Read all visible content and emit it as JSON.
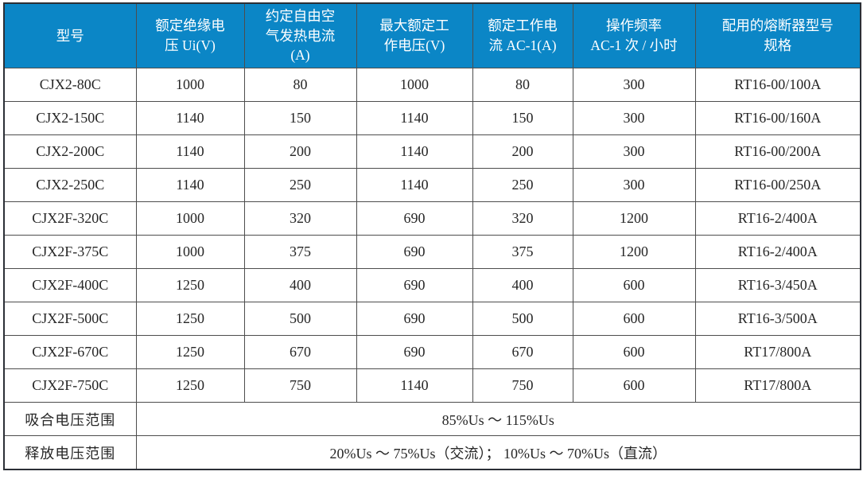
{
  "table": {
    "columns": [
      "型号",
      "额定绝缘电\n压 Ui(V)",
      "约定自由空\n气发热电流\n(A)",
      "最大额定工\n作电压(V)",
      "额定工作电\n流 AC-1(A)",
      "操作频率\nAC-1 次 / 小时",
      "配用的熔断器型号\n规格"
    ],
    "rows": [
      [
        "CJX2-80C",
        "1000",
        "80",
        "1000",
        "80",
        "300",
        "RT16-00/100A"
      ],
      [
        "CJX2-150C",
        "1140",
        "150",
        "1140",
        "150",
        "300",
        "RT16-00/160A"
      ],
      [
        "CJX2-200C",
        "1140",
        "200",
        "1140",
        "200",
        "300",
        "RT16-00/200A"
      ],
      [
        "CJX2-250C",
        "1140",
        "250",
        "1140",
        "250",
        "300",
        "RT16-00/250A"
      ],
      [
        "CJX2F-320C",
        "1000",
        "320",
        "690",
        "320",
        "1200",
        "RT16-2/400A"
      ],
      [
        "CJX2F-375C",
        "1000",
        "375",
        "690",
        "375",
        "1200",
        "RT16-2/400A"
      ],
      [
        "CJX2F-400C",
        "1250",
        "400",
        "690",
        "400",
        "600",
        "RT16-3/450A"
      ],
      [
        "CJX2F-500C",
        "1250",
        "500",
        "690",
        "500",
        "600",
        "RT16-3/500A"
      ],
      [
        "CJX2F-670C",
        "1250",
        "670",
        "690",
        "670",
        "600",
        "RT17/800A"
      ],
      [
        "CJX2F-750C",
        "1250",
        "750",
        "1140",
        "750",
        "600",
        "RT17/800A"
      ]
    ],
    "footer": [
      {
        "label": "吸合电压范围",
        "value": "85%Us ～ 115%Us"
      },
      {
        "label": "释放电压范围",
        "value": "20%Us ～ 75%Us（交流）； 10%Us ～ 70%Us（直流）"
      }
    ],
    "colors": {
      "header_bg": "#0b86c6",
      "header_text": "#ffffff",
      "body_text": "#262626",
      "grid_line": "#4d4d4d"
    }
  }
}
